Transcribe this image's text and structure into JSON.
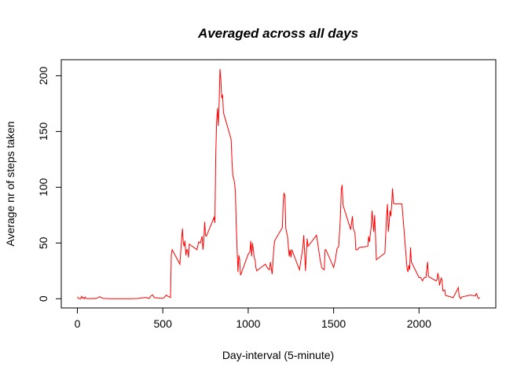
{
  "chart_data": {
    "type": "line",
    "title": "Averaged across all days",
    "x_label": "Day-interval (5-minute)",
    "y_label": "Average nr of steps taken",
    "color": "#ff0000",
    "x": [
      0,
      5,
      10,
      15,
      20,
      25,
      30,
      35,
      40,
      45,
      50,
      55,
      100,
      110,
      130,
      150,
      200,
      300,
      350,
      400,
      420,
      430,
      440,
      450,
      500,
      510,
      520,
      530,
      545,
      550,
      555,
      600,
      610,
      615,
      620,
      625,
      630,
      635,
      640,
      645,
      650,
      655,
      700,
      710,
      720,
      730,
      735,
      740,
      745,
      750,
      755,
      800,
      805,
      810,
      815,
      820,
      825,
      830,
      835,
      840,
      845,
      850,
      855,
      900,
      905,
      910,
      915,
      920,
      925,
      930,
      935,
      940,
      945,
      950,
      955,
      1000,
      1010,
      1015,
      1020,
      1025,
      1030,
      1035,
      1040,
      1045,
      1050,
      1100,
      1115,
      1125,
      1130,
      1140,
      1145,
      1150,
      1155,
      1200,
      1205,
      1210,
      1215,
      1220,
      1230,
      1240,
      1245,
      1250,
      1255,
      1300,
      1315,
      1320,
      1325,
      1330,
      1335,
      1340,
      1345,
      1350,
      1400,
      1420,
      1430,
      1435,
      1445,
      1450,
      1455,
      1500,
      1510,
      1520,
      1530,
      1540,
      1545,
      1550,
      1555,
      1600,
      1610,
      1615,
      1625,
      1630,
      1640,
      1650,
      1700,
      1705,
      1710,
      1720,
      1725,
      1730,
      1735,
      1740,
      1745,
      1750,
      1800,
      1805,
      1810,
      1815,
      1820,
      1825,
      1830,
      1835,
      1840,
      1845,
      1850,
      1855,
      1900,
      1930,
      1935,
      1940,
      1945,
      1950,
      1955,
      2000,
      2005,
      2010,
      2020,
      2030,
      2040,
      2050,
      2055,
      2100,
      2105,
      2110,
      2115,
      2120,
      2130,
      2135,
      2140,
      2150,
      2155,
      2200,
      2230,
      2235,
      2245,
      2250,
      2300,
      2330,
      2335,
      2340,
      2345,
      2350,
      2355
    ],
    "values": [
      1.7,
      0.3,
      0.1,
      0.2,
      0.1,
      2.1,
      0.5,
      0.9,
      0,
      1.5,
      0.3,
      0.1,
      0.3,
      0.2,
      1.8,
      0.3,
      0,
      0,
      0.2,
      1.2,
      0.3,
      2.5,
      3.5,
      1,
      0.3,
      1.4,
      3.3,
      2.2,
      1,
      40,
      44,
      31,
      53,
      63,
      50,
      47,
      52,
      39,
      44,
      44,
      37,
      49,
      44,
      51,
      50,
      56,
      44,
      52,
      69,
      57,
      56,
      73,
      68,
      129,
      158,
      171,
      155,
      177,
      206,
      196,
      180,
      183,
      167,
      143,
      124,
      110,
      108,
      104,
      96,
      66,
      45,
      24,
      39,
      35,
      21,
      40,
      42,
      52,
      38,
      50,
      44,
      37,
      35,
      28,
      25,
      31,
      27,
      26,
      33,
      22,
      33,
      46,
      52,
      64,
      88,
      95,
      92,
      63,
      56,
      38,
      44,
      37,
      44,
      26,
      41,
      46,
      57,
      43,
      25,
      40,
      54,
      47,
      57,
      36,
      28,
      27,
      26,
      44,
      44,
      28,
      35,
      45,
      47,
      74,
      98,
      102,
      84,
      62,
      74,
      63,
      59,
      44,
      44,
      46,
      47,
      56,
      51,
      65,
      79,
      69,
      60,
      75,
      57,
      35,
      41,
      58,
      74,
      85,
      60,
      68,
      79,
      74,
      85,
      99,
      86,
      85,
      85,
      27,
      24,
      30,
      26,
      46,
      33,
      19,
      19,
      19,
      16,
      19,
      19,
      33,
      20,
      16,
      17,
      23,
      19,
      12,
      19,
      16,
      7,
      8,
      3,
      1,
      10,
      2,
      0,
      1.6,
      3.3,
      2.6,
      4.7,
      3.3,
      0.6,
      0.2,
      1.1
    ],
    "xlim": [
      -94.2,
      2449.2
    ],
    "xticks": [
      0,
      500,
      1000,
      1500,
      2000
    ],
    "ylim": [
      -8.25,
      214.4
    ],
    "yticks": [
      0,
      50,
      100,
      150,
      200
    ]
  }
}
